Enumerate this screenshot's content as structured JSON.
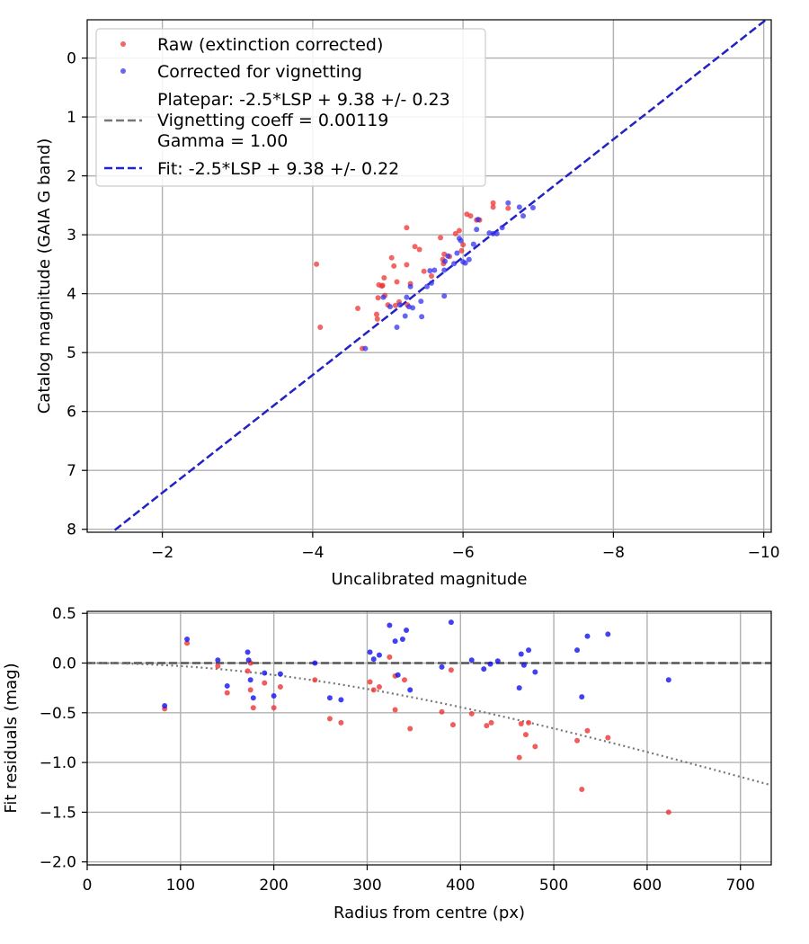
{
  "chart_data": [
    {
      "type": "scatter",
      "title": "",
      "xlabel": "Uncalibrated magnitude",
      "ylabel": "Catalog magnitude (GAIA G band)",
      "xlim": [
        -1.0,
        -10.1
      ],
      "ylim": [
        8.05,
        -0.65
      ],
      "x_ticks": [
        -2,
        -4,
        -6,
        -8,
        -10
      ],
      "x_tick_labels": [
        "−2",
        "−4",
        "−6",
        "−8",
        "−10"
      ],
      "y_ticks": [
        0,
        1,
        2,
        3,
        4,
        5,
        6,
        7,
        8
      ],
      "y_tick_labels": [
        "0",
        "1",
        "2",
        "3",
        "4",
        "5",
        "6",
        "7",
        "8"
      ],
      "grid": true,
      "legend_position": "top-left",
      "legend": [
        {
          "label": "Raw (extinction corrected)",
          "kind": "marker",
          "color": "#ee3333"
        },
        {
          "label": "Corrected for vignetting",
          "kind": "marker",
          "color": "#3333ee"
        },
        {
          "label": "Platepar: -2.5*LSP + 9.38 +/- 0.23",
          "kind": "line",
          "color": "#777777",
          "dash": true
        },
        {
          "label": "Vignetting coeff = 0.00119",
          "kind": "text"
        },
        {
          "label": "Gamma = 1.00",
          "kind": "text"
        },
        {
          "label": "Fit: -2.5*LSP + 9.38 +/- 0.22",
          "kind": "line",
          "color": "#2222cc",
          "dash": true
        }
      ],
      "lines": [
        {
          "name": "Platepar",
          "slope": 1,
          "intercept": 9.38,
          "color": "#777777"
        },
        {
          "name": "Fit",
          "slope": 1,
          "intercept": 9.38,
          "color": "#2222cc"
        }
      ],
      "series": [
        {
          "name": "Raw (extinction corrected)",
          "color": "#ee3333",
          "points": [
            [
              -4.1,
              4.57
            ],
            [
              -4.05,
              3.5
            ],
            [
              -4.6,
              4.25
            ],
            [
              -4.66,
              4.93
            ],
            [
              -4.85,
              4.35
            ],
            [
              -4.86,
              4.43
            ],
            [
              -4.87,
              4.07
            ],
            [
              -4.88,
              3.85
            ],
            [
              -4.92,
              3.87
            ],
            [
              -4.93,
              3.86
            ],
            [
              -4.95,
              3.73
            ],
            [
              -4.96,
              4.03
            ],
            [
              -5.0,
              4.19
            ],
            [
              -5.05,
              3.39
            ],
            [
              -5.08,
              3.53
            ],
            [
              -5.1,
              4.2
            ],
            [
              -5.12,
              3.8
            ],
            [
              -5.15,
              4.14
            ],
            [
              -5.25,
              3.51
            ],
            [
              -5.26,
              4.19
            ],
            [
              -5.25,
              2.88
            ],
            [
              -5.3,
              3.83
            ],
            [
              -5.36,
              3.2
            ],
            [
              -5.42,
              3.25
            ],
            [
              -5.48,
              3.62
            ],
            [
              -5.58,
              3.7
            ],
            [
              -5.7,
              3.05
            ],
            [
              -5.73,
              3.42
            ],
            [
              -5.74,
              3.49
            ],
            [
              -5.75,
              3.33
            ],
            [
              -5.82,
              3.37
            ],
            [
              -5.9,
              2.98
            ],
            [
              -5.95,
              2.93
            ],
            [
              -5.98,
              3.27
            ],
            [
              -6.0,
              3.17
            ],
            [
              -6.05,
              2.65
            ],
            [
              -6.1,
              2.68
            ],
            [
              -6.18,
              2.75
            ],
            [
              -6.22,
              2.75
            ],
            [
              -6.4,
              2.46
            ],
            [
              -6.4,
              2.53
            ],
            [
              -6.6,
              2.55
            ]
          ]
        },
        {
          "name": "Corrected for vignetting",
          "color": "#3333ee",
          "points": [
            [
              -4.7,
              4.93
            ],
            [
              -4.94,
              4.06
            ],
            [
              -5.03,
              4.22
            ],
            [
              -5.12,
              4.57
            ],
            [
              -5.16,
              4.19
            ],
            [
              -5.23,
              4.38
            ],
            [
              -5.25,
              4.06
            ],
            [
              -5.28,
              4.22
            ],
            [
              -5.3,
              3.88
            ],
            [
              -5.33,
              4.24
            ],
            [
              -5.44,
              4.13
            ],
            [
              -5.45,
              4.39
            ],
            [
              -5.52,
              3.88
            ],
            [
              -5.56,
              3.61
            ],
            [
              -5.58,
              3.82
            ],
            [
              -5.62,
              3.6
            ],
            [
              -5.75,
              3.6
            ],
            [
              -5.75,
              4.04
            ],
            [
              -5.76,
              3.45
            ],
            [
              -5.8,
              3.36
            ],
            [
              -5.88,
              3.49
            ],
            [
              -5.92,
              3.31
            ],
            [
              -5.95,
              3.06
            ],
            [
              -5.97,
              3.1
            ],
            [
              -6.0,
              3.46
            ],
            [
              -6.03,
              3.48
            ],
            [
              -6.08,
              3.42
            ],
            [
              -6.14,
              3.16
            ],
            [
              -6.18,
              2.91
            ],
            [
              -6.2,
              2.74
            ],
            [
              -6.35,
              2.97
            ],
            [
              -6.4,
              2.98
            ],
            [
              -6.45,
              2.98
            ],
            [
              -6.52,
              2.88
            ],
            [
              -6.6,
              2.46
            ],
            [
              -6.75,
              2.53
            ],
            [
              -6.8,
              2.68
            ],
            [
              -6.93,
              2.54
            ]
          ]
        }
      ]
    },
    {
      "type": "scatter",
      "title": "",
      "xlabel": "Radius from centre (px)",
      "ylabel": "Fit residuals (mag)",
      "xlim": [
        0,
        733
      ],
      "ylim": [
        -2.03,
        0.52
      ],
      "x_ticks": [
        0,
        100,
        200,
        300,
        400,
        500,
        600,
        700
      ],
      "x_tick_labels": [
        "0",
        "100",
        "200",
        "300",
        "400",
        "500",
        "600",
        "700"
      ],
      "y_ticks": [
        0.5,
        0.0,
        -0.5,
        -1.0,
        -1.5,
        -2.0
      ],
      "y_tick_labels": [
        "0.5",
        "0.0",
        "−0.5",
        "−1.0",
        "−1.5",
        "−2.0"
      ],
      "grid": true,
      "zero_line": {
        "y": 0,
        "color": "#555555"
      },
      "vignetting_curve": {
        "coeff": 0.00119,
        "gamma": 1.0,
        "color": "#777777"
      },
      "series": [
        {
          "name": "Raw",
          "color": "#ee3333",
          "points": [
            [
              83,
              -0.46
            ],
            [
              107,
              0.2
            ],
            [
              140,
              -0.03
            ],
            [
              150,
              -0.3
            ],
            [
              172,
              -0.08
            ],
            [
              175,
              0.0
            ],
            [
              175,
              -0.27
            ],
            [
              178,
              -0.45
            ],
            [
              190,
              -0.2
            ],
            [
              200,
              -0.45
            ],
            [
              207,
              -0.24
            ],
            [
              244,
              -0.17
            ],
            [
              260,
              -0.56
            ],
            [
              272,
              -0.6
            ],
            [
              303,
              -0.19
            ],
            [
              307,
              -0.27
            ],
            [
              313,
              -0.24
            ],
            [
              324,
              0.06
            ],
            [
              330,
              -0.13
            ],
            [
              330,
              -0.47
            ],
            [
              340,
              -0.17
            ],
            [
              346,
              -0.66
            ],
            [
              380,
              -0.49
            ],
            [
              390,
              -0.07
            ],
            [
              392,
              -0.62
            ],
            [
              412,
              -0.51
            ],
            [
              428,
              -0.63
            ],
            [
              433,
              -0.6
            ],
            [
              463,
              -0.95
            ],
            [
              465,
              -0.61
            ],
            [
              470,
              -0.72
            ],
            [
              473,
              -0.6
            ],
            [
              480,
              -0.84
            ],
            [
              525,
              -0.78
            ],
            [
              530,
              -1.27
            ],
            [
              536,
              -0.68
            ],
            [
              558,
              -0.75
            ],
            [
              623,
              -1.5
            ]
          ]
        },
        {
          "name": "Corrected",
          "color": "#1111ee",
          "points": [
            [
              83,
              -0.43
            ],
            [
              107,
              0.24
            ],
            [
              140,
              0.03
            ],
            [
              150,
              -0.23
            ],
            [
              172,
              0.11
            ],
            [
              173,
              0.03
            ],
            [
              175,
              -0.17
            ],
            [
              178,
              -0.35
            ],
            [
              190,
              -0.1
            ],
            [
              200,
              -0.33
            ],
            [
              207,
              -0.11
            ],
            [
              244,
              0.0
            ],
            [
              260,
              -0.35
            ],
            [
              272,
              -0.37
            ],
            [
              303,
              0.11
            ],
            [
              307,
              0.04
            ],
            [
              313,
              0.08
            ],
            [
              324,
              0.38
            ],
            [
              330,
              0.22
            ],
            [
              333,
              -0.12
            ],
            [
              338,
              0.24
            ],
            [
              342,
              0.33
            ],
            [
              346,
              -0.27
            ],
            [
              380,
              -0.04
            ],
            [
              390,
              0.41
            ],
            [
              412,
              0.03
            ],
            [
              425,
              -0.06
            ],
            [
              432,
              -0.01
            ],
            [
              440,
              0.02
            ],
            [
              463,
              -0.25
            ],
            [
              465,
              0.09
            ],
            [
              468,
              -0.02
            ],
            [
              473,
              0.13
            ],
            [
              480,
              -0.09
            ],
            [
              525,
              0.13
            ],
            [
              530,
              -0.34
            ],
            [
              536,
              0.27
            ],
            [
              558,
              0.29
            ],
            [
              623,
              -0.17
            ]
          ]
        }
      ]
    }
  ]
}
